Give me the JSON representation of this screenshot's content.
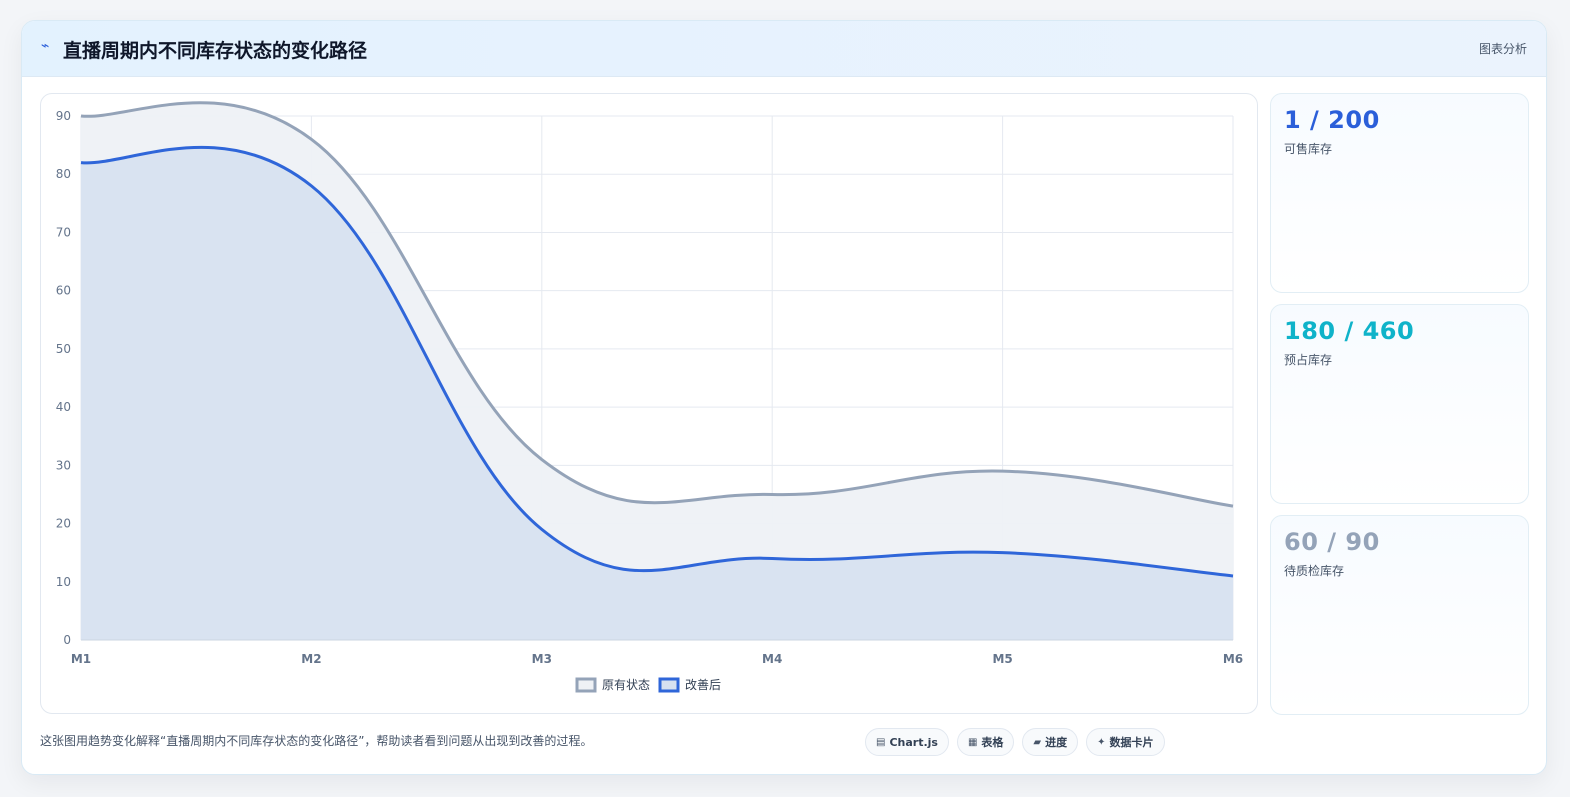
{
  "header": {
    "icon": "⌁",
    "title": "直播周期内不同库存状态的变化路径",
    "right_label": "图表分析"
  },
  "chart_data": {
    "type": "area",
    "x": [
      "M1",
      "M2",
      "M3",
      "M4",
      "M5",
      "M6"
    ],
    "yticks": [
      "0",
      "10",
      "20",
      "30",
      "40",
      "50",
      "60",
      "70",
      "80",
      "90"
    ],
    "ylim": [
      0,
      90
    ],
    "grid": true,
    "legend_placement": "bottom-center",
    "series": [
      {
        "name": "原有状态",
        "values": [
          90,
          86,
          31,
          25,
          29,
          23
        ],
        "color": "#94a3b8",
        "fill": "#eef1f5"
      },
      {
        "name": "改善后",
        "values": [
          82,
          78,
          19,
          14,
          15,
          11
        ],
        "color": "#2f66d9",
        "fill": "#d7e1f0"
      }
    ]
  },
  "stats": [
    {
      "value": "1 / 200",
      "label": "可售库存",
      "color": "#2b5fd9"
    },
    {
      "value": "180 / 460",
      "label": "预占库存",
      "color": "#0fb3c9"
    },
    {
      "value": "60 / 90",
      "label": "待质检库存",
      "color": "#94a3b8"
    }
  ],
  "footer": {
    "caption": "这张图用趋势变化解释“直播周期内不同库存状态的变化路径”，帮助读者看到问题从出现到改善的过程。"
  },
  "tags": [
    {
      "icon": "▤",
      "label": "Chart.js"
    },
    {
      "icon": "▦",
      "label": "表格"
    },
    {
      "icon": "▰",
      "label": "进度"
    },
    {
      "icon": "✦",
      "label": "数据卡片"
    }
  ]
}
